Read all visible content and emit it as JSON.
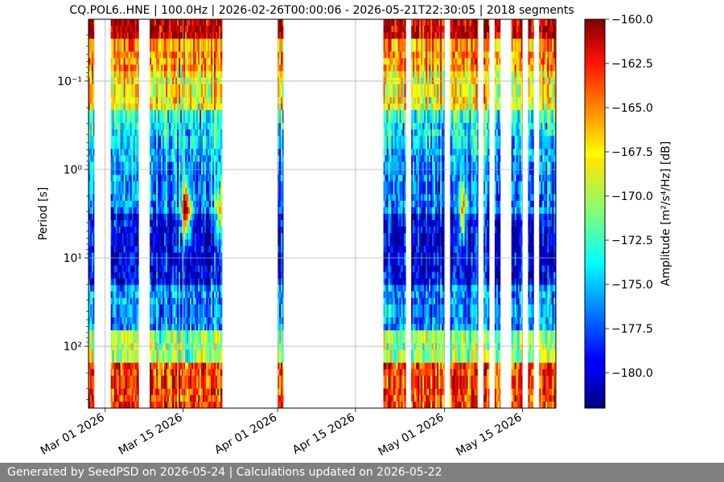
{
  "chart_data": {
    "type": "heatmap",
    "title": "CQ.POL6..HNE | 100.0Hz | 2026-02-26T00:00:06 - 2026-05-21T22:30:05 | 2018 segments",
    "ylabel": "Period [s]",
    "y_scale": "log",
    "y_inverted": true,
    "ylim": [
      0.02,
      500
    ],
    "y_ticks": [
      0.1,
      1,
      10,
      100
    ],
    "y_tick_labels": [
      "10⁻¹",
      "10⁰",
      "10¹",
      "10²"
    ],
    "xlim": [
      "2026-02-26",
      "2026-05-21"
    ],
    "x_ticks": [
      "2026-03-01",
      "2026-03-15",
      "2026-04-01",
      "2026-04-15",
      "2026-05-01",
      "2026-05-15"
    ],
    "x_tick_labels": [
      "Mar 01 2026",
      "Mar 15 2026",
      "Apr 01 2026",
      "Apr 15 2026",
      "May 01 2026",
      "May 15 2026"
    ],
    "grid": true,
    "colormap": "jet",
    "colorbar": {
      "label": "Amplitude [m²/s⁴/Hz] [dB]",
      "range": [
        -182,
        -160
      ],
      "ticks": [
        "-160.0",
        "-162.5",
        "-165.0",
        "-167.5",
        "-170.0",
        "-172.5",
        "-175.0",
        "-177.5",
        "-180.0"
      ]
    },
    "data_intervals": [
      [
        "2026-02-26",
        "2026-02-27"
      ],
      [
        "2026-03-02",
        "2026-03-07"
      ],
      [
        "2026-03-09",
        "2026-03-22"
      ],
      [
        "2026-04-01",
        "2026-04-02"
      ],
      [
        "2026-04-20",
        "2026-04-24"
      ],
      [
        "2026-04-25",
        "2026-05-01"
      ],
      [
        "2026-05-02",
        "2026-05-07"
      ],
      [
        "2026-05-08",
        "2026-05-09"
      ],
      [
        "2026-05-10",
        "2026-05-11"
      ],
      [
        "2026-05-13",
        "2026-05-15"
      ],
      [
        "2026-05-16",
        "2026-05-17"
      ],
      [
        "2026-05-18",
        "2026-05-21"
      ]
    ]
  },
  "footer": {
    "text": "Generated by SeedPSD on 2026-05-24 | Calculations updated on 2026-05-22"
  }
}
